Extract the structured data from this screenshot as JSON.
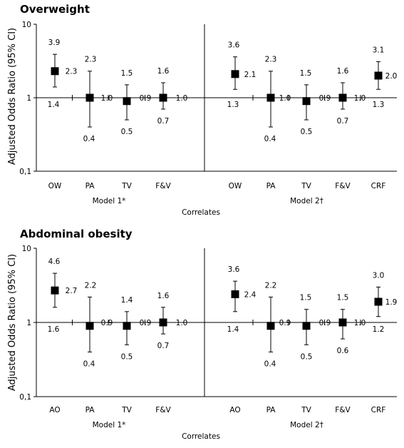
{
  "ylabel": "Adjusted Odds Ratio (95% CI)",
  "chart_data": [
    {
      "type": "scatter",
      "title": "Overweight",
      "xlabel": "Correlates",
      "ylabel": "Adjusted Odds Ratio (95% CI)",
      "y_scale": "log",
      "ylim": [
        0.1,
        10
      ],
      "y_ticks": [
        "10",
        "1",
        "0,1"
      ],
      "models": [
        {
          "name": "Model 1*",
          "points": [
            {
              "category": "OW",
              "or": 2.3,
              "lower": 1.4,
              "upper": 3.9,
              "or_label": "2.3",
              "lower_label": "1.4",
              "upper_label": "3.9"
            },
            {
              "category": "PA",
              "or": 1.0,
              "lower": 0.4,
              "upper": 2.3,
              "or_label": "1.0",
              "lower_label": "0.4",
              "upper_label": "2.3"
            },
            {
              "category": "TV",
              "or": 0.9,
              "lower": 0.5,
              "upper": 1.5,
              "or_label": "0.9",
              "lower_label": "0.5",
              "upper_label": "1.5"
            },
            {
              "category": "F&V",
              "or": 1.0,
              "lower": 0.7,
              "upper": 1.6,
              "or_label": "1.0",
              "lower_label": "0.7",
              "upper_label": "1.6"
            }
          ]
        },
        {
          "name": "Model 2†",
          "points": [
            {
              "category": "OW",
              "or": 2.1,
              "lower": 1.3,
              "upper": 3.6,
              "or_label": "2.1",
              "lower_label": "1.3",
              "upper_label": "3.6"
            },
            {
              "category": "PA",
              "or": 1.0,
              "lower": 0.4,
              "upper": 2.3,
              "or_label": "1.0",
              "lower_label": "0.4",
              "upper_label": "2.3"
            },
            {
              "category": "TV",
              "or": 0.9,
              "lower": 0.5,
              "upper": 1.5,
              "or_label": "0.9",
              "lower_label": "0.5",
              "upper_label": "1.5"
            },
            {
              "category": "F&V",
              "or": 1.0,
              "lower": 0.7,
              "upper": 1.6,
              "or_label": "1.0",
              "lower_label": "0.7",
              "upper_label": "1.6"
            },
            {
              "category": "CRF",
              "or": 2.0,
              "lower": 1.3,
              "upper": 3.1,
              "or_label": "2.0",
              "lower_label": "1.3",
              "upper_label": "3.1"
            }
          ]
        }
      ]
    },
    {
      "type": "scatter",
      "title": "Abdominal obesity",
      "xlabel": "Correlates",
      "ylabel": "Adjusted Odds Ratio (95% CI)",
      "y_scale": "log",
      "ylim": [
        0.1,
        10
      ],
      "y_ticks": [
        "10",
        "1",
        "0,1"
      ],
      "models": [
        {
          "name": "Model 1*",
          "points": [
            {
              "category": "AO",
              "or": 2.7,
              "lower": 1.6,
              "upper": 4.6,
              "or_label": "2.7",
              "lower_label": "1.6",
              "upper_label": "4.6"
            },
            {
              "category": "PA",
              "or": 0.9,
              "lower": 0.4,
              "upper": 2.2,
              "or_label": "0.9",
              "lower_label": "0.4",
              "upper_label": "2.2"
            },
            {
              "category": "TV",
              "or": 0.9,
              "lower": 0.5,
              "upper": 1.4,
              "or_label": "0.9",
              "lower_label": "0.5",
              "upper_label": "1.4"
            },
            {
              "category": "F&V",
              "or": 1.0,
              "lower": 0.7,
              "upper": 1.6,
              "or_label": "1.0",
              "lower_label": "0.7",
              "upper_label": "1.6"
            }
          ]
        },
        {
          "name": "Model 2†",
          "points": [
            {
              "category": "AO",
              "or": 2.4,
              "lower": 1.4,
              "upper": 3.6,
              "or_label": "2.4",
              "lower_label": "1.4",
              "upper_label": "3.6"
            },
            {
              "category": "PA",
              "or": 0.9,
              "lower": 0.4,
              "upper": 2.2,
              "or_label": "0.9",
              "lower_label": "0.4",
              "upper_label": "2.2"
            },
            {
              "category": "TV",
              "or": 0.9,
              "lower": 0.5,
              "upper": 1.5,
              "or_label": "0.9",
              "lower_label": "0.5",
              "upper_label": "1.5"
            },
            {
              "category": "F&V",
              "or": 1.0,
              "lower": 0.6,
              "upper": 1.5,
              "or_label": "1.0",
              "lower_label": "0.6",
              "upper_label": "1.5"
            },
            {
              "category": "CRF",
              "or": 1.9,
              "lower": 1.2,
              "upper": 3.0,
              "or_label": "1.9",
              "lower_label": "1.2",
              "upper_label": "3.0"
            }
          ]
        }
      ]
    }
  ]
}
